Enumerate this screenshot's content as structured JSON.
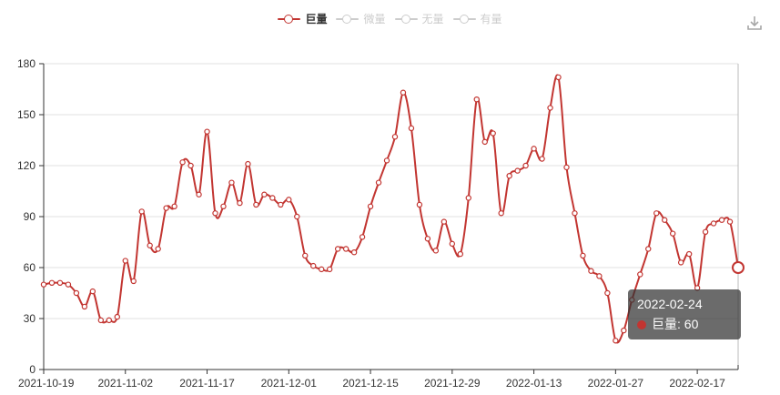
{
  "legend": {
    "items": [
      {
        "label": "巨量",
        "active": true
      },
      {
        "label": "微量",
        "active": false
      },
      {
        "label": "无量",
        "active": false
      },
      {
        "label": "有量",
        "active": false
      }
    ]
  },
  "toolbox": {
    "save_as_image_icon": "download-icon"
  },
  "tooltip": {
    "date": "2022-02-24",
    "series_label": "巨量",
    "value": "60",
    "value_line": "巨量: 60"
  },
  "colors": {
    "series": "#c23531",
    "inactive_legend": "#cccccc",
    "axis_line": "#333333",
    "axis_label": "#333333",
    "grid_line": "#e0e0e0",
    "axis_pointer": "#bbbbbb",
    "tooltip_bg": "rgba(50,50,50,0.72)",
    "icon_gray": "#a6a6a6"
  },
  "chart_data": {
    "type": "line",
    "smooth": true,
    "title": "",
    "xlabel": "",
    "ylabel": "",
    "ylim": [
      0,
      180
    ],
    "y_interval": 30,
    "y_tick_labels": [
      "0",
      "30",
      "60",
      "90",
      "120",
      "150",
      "180"
    ],
    "grid": true,
    "legend_position": "top-center",
    "x_tick_indices": [
      0,
      10,
      20,
      30,
      40,
      50,
      60,
      70,
      80
    ],
    "x_tick_labels": [
      "2021-10-19",
      "2021-11-02",
      "2021-11-17",
      "2021-12-01",
      "2021-12-15",
      "2021-12-29",
      "2022-01-13",
      "2022-01-27",
      "2022-02-17"
    ],
    "highlighted_index": 85,
    "highlighted_x_value": "2022-02-24",
    "series": [
      {
        "name": "巨量",
        "color": "#c23531",
        "values": [
          50,
          51,
          51,
          50,
          45,
          37,
          46,
          29,
          29,
          31,
          64,
          52,
          93,
          73,
          71,
          95,
          96,
          122,
          120,
          103,
          140,
          92,
          96,
          110,
          98,
          121,
          97,
          103,
          101,
          97,
          100,
          90,
          67,
          61,
          59,
          59,
          71,
          71,
          69,
          78,
          96,
          110,
          123,
          137,
          163,
          142,
          97,
          77,
          70,
          87,
          74,
          68,
          101,
          159,
          134,
          139,
          92,
          114,
          117,
          120,
          130,
          124,
          154,
          172,
          119,
          92,
          67,
          58,
          55,
          45,
          17,
          23,
          41,
          56,
          71,
          92,
          88,
          80,
          63,
          68,
          48,
          81,
          86,
          88,
          87,
          60
        ]
      }
    ]
  }
}
